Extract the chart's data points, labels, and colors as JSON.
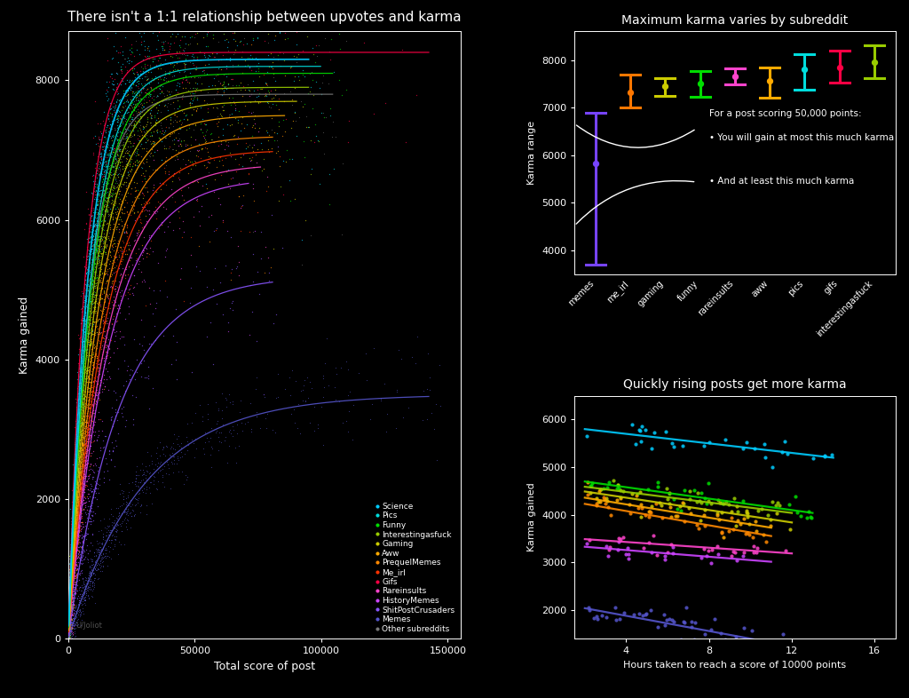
{
  "bg_color": "#000000",
  "text_color": "#ffffff",
  "title_main": "There isn't a 1:1 relationship between upvotes and karma",
  "title_top_right": "Maximum karma varies by subreddit",
  "title_bottom_right": "Quickly rising posts get more karma",
  "xlabel_main": "Total score of post",
  "ylabel_main": "Karma gained",
  "ylabel_top_right": "Karma range",
  "xlabel_bottom_right": "Hours taken to reach a score of 10000 points",
  "ylabel_bottom_right": "Karma gained",
  "watermark": "U/JoIiot",
  "subreddits": [
    {
      "name": "Science",
      "color": "#00ccff",
      "max_karma": 8300,
      "saturation": 8000,
      "n": 500,
      "x_max": 100000,
      "label": "Science"
    },
    {
      "name": "Pics",
      "color": "#00dddd",
      "max_karma": 8200,
      "saturation": 9000,
      "n": 500,
      "x_max": 105000,
      "label": "Pics"
    },
    {
      "name": "Funny",
      "color": "#00dd00",
      "max_karma": 8100,
      "saturation": 9500,
      "n": 500,
      "x_max": 110000,
      "label": "Funny"
    },
    {
      "name": "Interestingasfuck",
      "color": "#99cc00",
      "max_karma": 7900,
      "saturation": 10000,
      "n": 450,
      "x_max": 100000,
      "label": "Interestingasfuck"
    },
    {
      "name": "Gaming",
      "color": "#cccc00",
      "max_karma": 7700,
      "saturation": 11000,
      "n": 400,
      "x_max": 95000,
      "label": "Gaming"
    },
    {
      "name": "Aww",
      "color": "#ffaa00",
      "max_karma": 7500,
      "saturation": 12000,
      "n": 400,
      "x_max": 90000,
      "label": "Aww"
    },
    {
      "name": "PrequelMemes",
      "color": "#ff8800",
      "max_karma": 7200,
      "saturation": 13000,
      "n": 350,
      "x_max": 85000,
      "label": "PrequelMemes"
    },
    {
      "name": "Me_irl",
      "color": "#ff3300",
      "max_karma": 7000,
      "saturation": 14000,
      "n": 350,
      "x_max": 85000,
      "label": "Me_irl"
    },
    {
      "name": "Gifs",
      "color": "#ff0044",
      "max_karma": 8400,
      "saturation": 7000,
      "n": 300,
      "x_max": 150000,
      "label": "Gifs"
    },
    {
      "name": "Rareinsults",
      "color": "#ff44cc",
      "max_karma": 6800,
      "saturation": 15000,
      "n": 300,
      "x_max": 80000,
      "label": "Rareinsults"
    },
    {
      "name": "HistoryMemes",
      "color": "#cc44ff",
      "max_karma": 6600,
      "saturation": 16000,
      "n": 280,
      "x_max": 75000,
      "label": "HistoryMemes"
    },
    {
      "name": "ShitPostCrusaders",
      "color": "#8855ff",
      "max_karma": 5200,
      "saturation": 20000,
      "n": 300,
      "x_max": 85000,
      "label": "ShitPostCrusaders"
    },
    {
      "name": "Memes",
      "color": "#5555cc",
      "max_karma": 3500,
      "saturation": 30000,
      "n": 700,
      "x_max": 150000,
      "label": "Memes"
    },
    {
      "name": "Other subreddits",
      "color": "#777777",
      "max_karma": 7800,
      "saturation": 8500,
      "n": 800,
      "x_max": 110000,
      "label": "Other subreddits"
    }
  ],
  "error_bar_data": [
    {
      "subreddit": "memes",
      "color": "#7744ff",
      "mid": 5820,
      "low": 3700,
      "high": 6900
    },
    {
      "subreddit": "me_irl",
      "color": "#ff7700",
      "mid": 7320,
      "low": 7000,
      "high": 7700
    },
    {
      "subreddit": "gaming",
      "color": "#cccc00",
      "mid": 7450,
      "low": 7250,
      "high": 7620
    },
    {
      "subreddit": "funny",
      "color": "#00dd00",
      "mid": 7500,
      "low": 7220,
      "high": 7760
    },
    {
      "subreddit": "rareinsults",
      "color": "#ff44cc",
      "mid": 7650,
      "low": 7480,
      "high": 7830
    },
    {
      "subreddit": "aww",
      "color": "#ffaa00",
      "mid": 7560,
      "low": 7200,
      "high": 7840
    },
    {
      "subreddit": "pics",
      "color": "#00dddd",
      "mid": 7800,
      "low": 7380,
      "high": 8120
    },
    {
      "subreddit": "gifs",
      "color": "#ff0044",
      "mid": 7840,
      "low": 7520,
      "high": 8200
    },
    {
      "subreddit": "interestingasfuck",
      "color": "#99cc00",
      "mid": 7960,
      "low": 7620,
      "high": 8300
    }
  ],
  "scatter_bottom_groups": [
    {
      "color": "#00ccff",
      "slope": -50,
      "intercept": 5900,
      "n": 30,
      "x_range": [
        2,
        14
      ],
      "noise": 150
    },
    {
      "color": "#00dd00",
      "slope": -60,
      "intercept": 4820,
      "n": 35,
      "x_range": [
        2,
        13
      ],
      "noise": 130
    },
    {
      "color": "#99cc00",
      "slope": -55,
      "intercept": 4700,
      "n": 30,
      "x_range": [
        2,
        12
      ],
      "noise": 120
    },
    {
      "color": "#cccc00",
      "slope": -65,
      "intercept": 4620,
      "n": 30,
      "x_range": [
        2,
        12
      ],
      "noise": 120
    },
    {
      "color": "#ffaa00",
      "slope": -70,
      "intercept": 4500,
      "n": 30,
      "x_range": [
        2,
        11
      ],
      "noise": 120
    },
    {
      "color": "#ff8800",
      "slope": -75,
      "intercept": 4380,
      "n": 28,
      "x_range": [
        2,
        11
      ],
      "noise": 110
    },
    {
      "color": "#ff44cc",
      "slope": -30,
      "intercept": 3550,
      "n": 25,
      "x_range": [
        2,
        12
      ],
      "noise": 100
    },
    {
      "color": "#cc44ff",
      "slope": -35,
      "intercept": 3400,
      "n": 20,
      "x_range": [
        2,
        11
      ],
      "noise": 100
    },
    {
      "color": "#5555cc",
      "slope": -80,
      "intercept": 2200,
      "n": 50,
      "x_range": [
        2,
        12
      ],
      "noise": 150
    }
  ]
}
